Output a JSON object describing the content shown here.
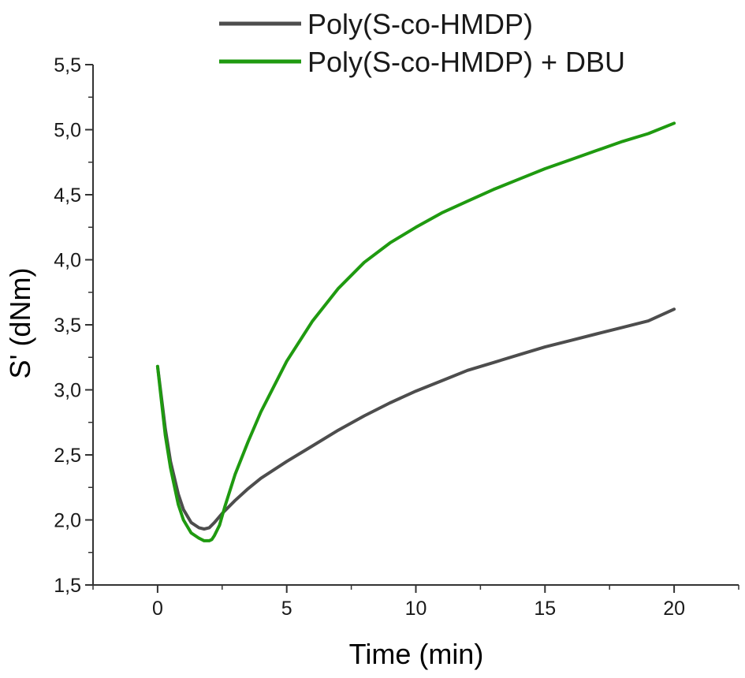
{
  "chart_data": {
    "type": "line",
    "title": "",
    "xlabel": "Time (min)",
    "ylabel": "S' (dNm)",
    "xlim": [
      -2.5,
      22.5
    ],
    "ylim": [
      1.5,
      5.5
    ],
    "x_ticks": [
      0,
      5,
      10,
      15,
      20
    ],
    "x_tick_labels": [
      "0",
      "5",
      "10",
      "15",
      "20"
    ],
    "y_ticks": [
      1.5,
      2.0,
      2.5,
      3.0,
      3.5,
      4.0,
      4.5,
      5.0,
      5.5
    ],
    "y_tick_labels": [
      "1,5",
      "2,0",
      "2,5",
      "3,0",
      "3,5",
      "4,0",
      "4,5",
      "5,0",
      "5,5"
    ],
    "grid": false,
    "legend_position": "top",
    "series": [
      {
        "name": "Poly(S-co-HMDP)",
        "color": "#4d4d4d",
        "x": [
          0,
          0.1,
          0.3,
          0.5,
          0.8,
          1.0,
          1.3,
          1.6,
          1.8,
          2.0,
          2.2,
          2.5,
          3.0,
          3.5,
          4.0,
          5.0,
          6.0,
          7.0,
          8.0,
          9.0,
          10.0,
          11.0,
          12.0,
          13.0,
          14.0,
          15.0,
          16.0,
          17.0,
          18.0,
          19.0,
          20.0
        ],
        "y": [
          3.18,
          3.02,
          2.7,
          2.45,
          2.2,
          2.08,
          1.98,
          1.94,
          1.93,
          1.94,
          1.98,
          2.05,
          2.15,
          2.24,
          2.32,
          2.45,
          2.57,
          2.69,
          2.8,
          2.9,
          2.99,
          3.07,
          3.15,
          3.21,
          3.27,
          3.33,
          3.38,
          3.43,
          3.48,
          3.53,
          3.62
        ]
      },
      {
        "name": "Poly(S-co-HMDP) + DBU",
        "color": "#1f9a10",
        "x": [
          0,
          0.1,
          0.3,
          0.5,
          0.8,
          1.0,
          1.3,
          1.6,
          1.8,
          2.0,
          2.1,
          2.2,
          2.4,
          2.6,
          3.0,
          3.5,
          4.0,
          5.0,
          6.0,
          7.0,
          8.0,
          9.0,
          10.0,
          11.0,
          12.0,
          13.0,
          14.0,
          15.0,
          16.0,
          17.0,
          18.0,
          19.0,
          20.0
        ],
        "y": [
          3.18,
          3.0,
          2.65,
          2.4,
          2.12,
          2.0,
          1.9,
          1.86,
          1.84,
          1.84,
          1.85,
          1.88,
          1.96,
          2.1,
          2.35,
          2.6,
          2.83,
          3.22,
          3.53,
          3.78,
          3.98,
          4.13,
          4.25,
          4.36,
          4.45,
          4.54,
          4.62,
          4.7,
          4.77,
          4.84,
          4.91,
          4.97,
          5.05
        ]
      }
    ]
  }
}
